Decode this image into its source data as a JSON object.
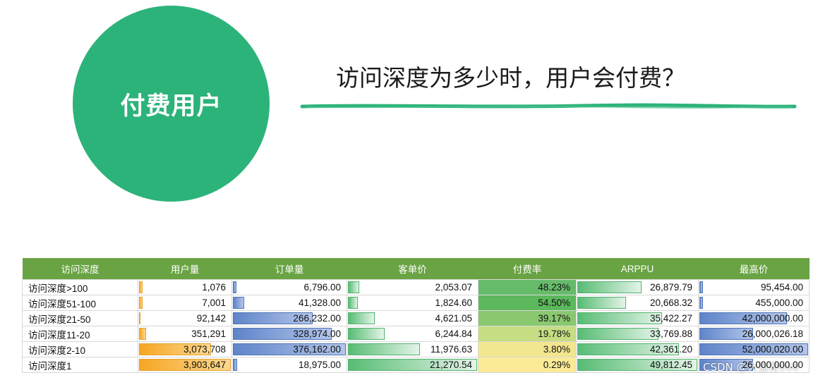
{
  "badge": {
    "text": "付费用户",
    "color": "#2cb37a"
  },
  "headline": "访问深度为多少时，用户会付费？",
  "table": {
    "columns": [
      "访问深度",
      "用户量",
      "订单量",
      "客单价",
      "付费率",
      "ARPPU",
      "最高价"
    ],
    "rows": [
      {
        "label": "访问深度>100",
        "users": "1,076",
        "orders": "6,796.00",
        "aov": "2,053.07",
        "rate": "48.23%",
        "arppu": "26,879.79",
        "max": "95,454.00"
      },
      {
        "label": "访问深度51-100",
        "users": "7,001",
        "orders": "41,328.00",
        "aov": "1,824.60",
        "rate": "54.50%",
        "arppu": "20,668.32",
        "max": "455,000.00"
      },
      {
        "label": "访问深度21-50",
        "users": "92,142",
        "orders": "266,232.00",
        "aov": "4,621.05",
        "rate": "39.17%",
        "arppu": "35,422.27",
        "max": "42,000,000.00"
      },
      {
        "label": "访问深度11-20",
        "users": "351,291",
        "orders": "328,974.00",
        "aov": "6,244.84",
        "rate": "19.78%",
        "arppu": "33,769.88",
        "max": "26,000,026.18"
      },
      {
        "label": "访问深度2-10",
        "users": "3,073,708",
        "orders": "376,162.00",
        "aov": "11,976.63",
        "rate": "3.80%",
        "arppu": "42,361.20",
        "max": "52,000,020.00"
      },
      {
        "label": "访问深度1",
        "users": "3,903,647",
        "orders": "18,975.00",
        "aov": "21,270.54",
        "rate": "0.29%",
        "arppu": "49,812.45",
        "max": "26,000,000.00"
      }
    ],
    "bar_fractions": {
      "users": [
        0.0003,
        0.0018,
        0.024,
        0.09,
        0.787,
        1.0
      ],
      "orders": [
        0.018,
        0.11,
        0.708,
        0.875,
        1.0,
        0.05
      ],
      "aov": [
        0.097,
        0.086,
        0.217,
        0.294,
        0.563,
        1.0
      ],
      "arppu": [
        0.54,
        0.415,
        0.711,
        0.678,
        0.85,
        1.0
      ],
      "max": [
        0.0018,
        0.0087,
        0.808,
        0.5,
        1.0,
        0.5
      ]
    },
    "rate_colors": [
      "#66bb6a",
      "#5cb85c",
      "#8ac870",
      "#c6dd84",
      "#f2e68e",
      "#fbeb96"
    ],
    "header_color": "#6aa343"
  },
  "watermark": "CSDN @大强哥666"
}
